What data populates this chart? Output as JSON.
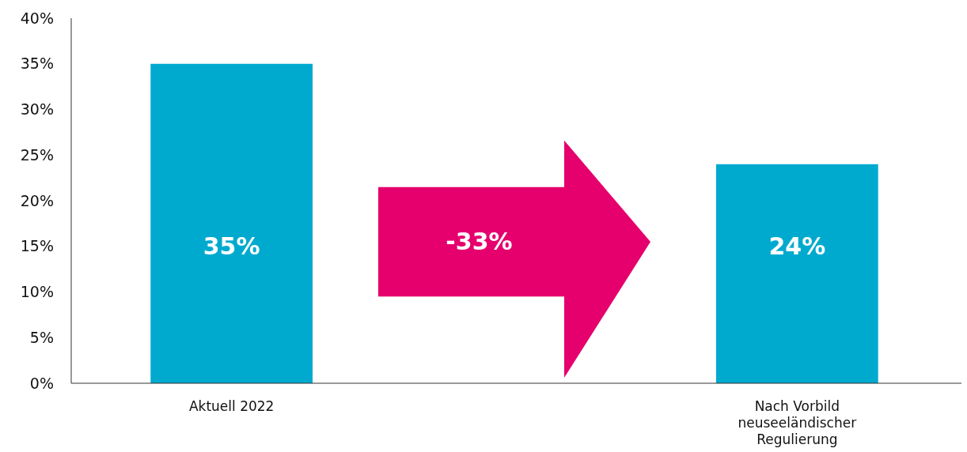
{
  "chart_data": {
    "type": "bar",
    "categories": [
      "Aktuell 2022",
      null,
      "Nach Vorbild neuseeländischer Regulierung"
    ],
    "values": [
      35,
      null,
      24
    ],
    "color": "#00aacf",
    "value_labels": [
      "35%",
      null,
      "24%"
    ],
    "ylim": [
      0,
      40
    ],
    "yticks": [
      {
        "value": 0,
        "label": "0%"
      },
      {
        "value": 5,
        "label": "5%"
      },
      {
        "value": 10,
        "label": "10%"
      },
      {
        "value": 15,
        "label": "15%"
      },
      {
        "value": 20,
        "label": "20%"
      },
      {
        "value": 25,
        "label": "25%"
      },
      {
        "value": 30,
        "label": "30%"
      },
      {
        "value": 35,
        "label": "35%"
      },
      {
        "value": 40,
        "label": "40%"
      }
    ],
    "grid": false,
    "annotations": [
      "-33%"
    ]
  }
}
